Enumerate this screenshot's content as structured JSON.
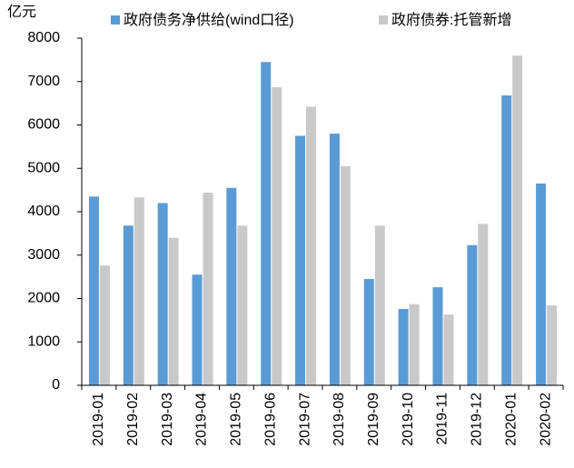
{
  "chart_data": {
    "type": "bar",
    "y_label": "亿元",
    "categories": [
      "2019-01",
      "2019-02",
      "2019-03",
      "2019-04",
      "2019-05",
      "2019-06",
      "2019-07",
      "2019-08",
      "2019-09",
      "2019-10",
      "2019-11",
      "2019-12",
      "2020-01",
      "2020-02"
    ],
    "series": [
      {
        "name": "政府债务净供给(wind口径)",
        "color": "#5b9bd5",
        "values": [
          4350,
          3680,
          4200,
          2550,
          4550,
          7450,
          5750,
          5800,
          2450,
          1760,
          2260,
          3230,
          6680,
          4650
        ]
      },
      {
        "name": "政府债券:托管新增",
        "color": "#c9c9c9",
        "values": [
          2760,
          4330,
          3400,
          4440,
          3680,
          6870,
          6420,
          5050,
          3680,
          1870,
          1630,
          3720,
          7600,
          1840
        ]
      }
    ],
    "ylim": [
      0,
      8000
    ],
    "yticks": [
      0,
      1000,
      2000,
      3000,
      4000,
      5000,
      6000,
      7000,
      8000
    ],
    "grid": false
  }
}
